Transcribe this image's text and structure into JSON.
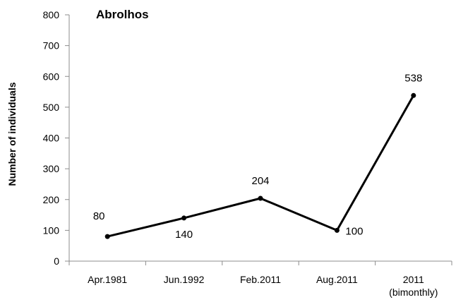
{
  "chart_data": {
    "type": "line",
    "title": "Abrolhos",
    "xlabel": "",
    "ylabel": "Number of individuals",
    "categories": [
      "Apr.1981",
      "Jun.1992",
      "Feb.2011",
      "Aug.2011",
      "2011 (bimonthly)"
    ],
    "values": [
      80,
      140,
      204,
      100,
      538
    ],
    "ylim": [
      0,
      800
    ],
    "yticks": [
      0,
      100,
      200,
      300,
      400,
      500,
      600,
      700,
      800
    ],
    "data_labels": [
      "80",
      "140",
      "204",
      "100",
      "538"
    ],
    "grid": false,
    "legend": "none",
    "line_color": "#000000"
  }
}
